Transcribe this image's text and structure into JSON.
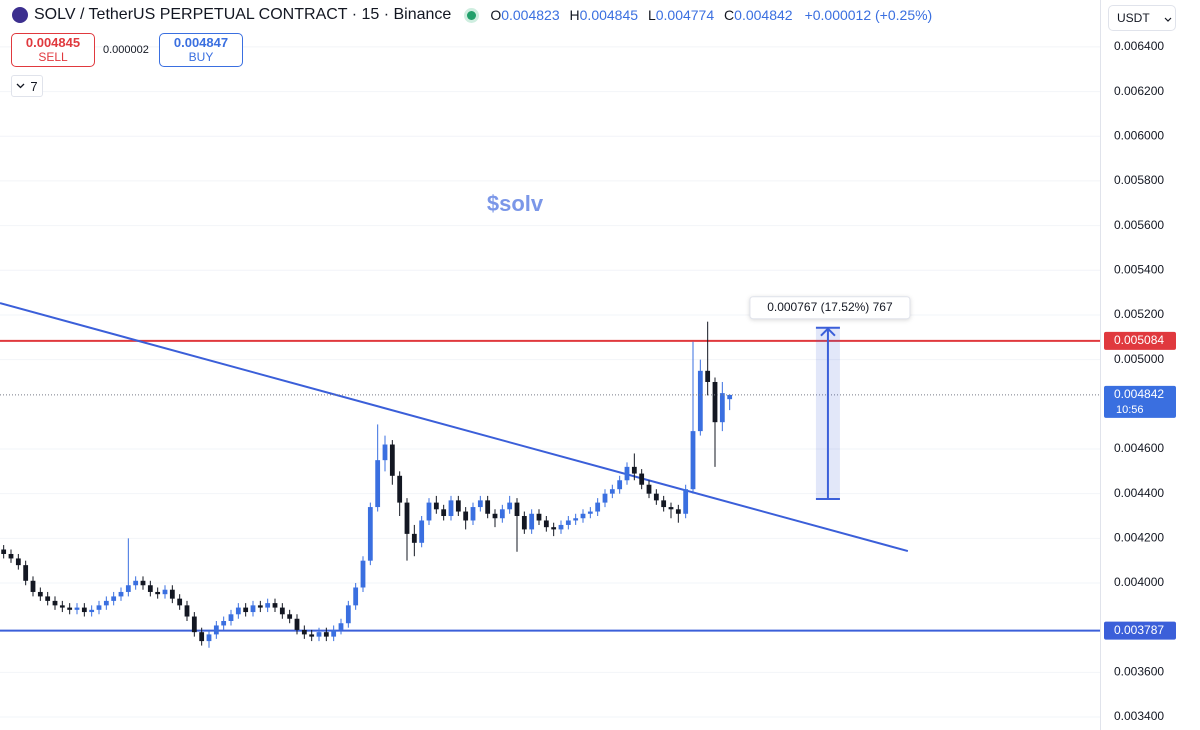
{
  "toolbar": {
    "title": "SOLV / TetherUS PERPETUAL CONTRACT · 15 · Binance",
    "ohlc_labels": [
      "O",
      "H",
      "L",
      "C"
    ],
    "change": "+0.000012 (+0.25%)",
    "sell": {
      "price": "0.004845",
      "label": "SELL"
    },
    "spread": "0.000002",
    "buy": {
      "price": "0.004847",
      "label": "BUY"
    },
    "indicators": "7",
    "currency": "USDT"
  },
  "chart_data": {
    "type": "candlestick",
    "annotation": "$solv",
    "xlim": [
      -0.5,
      149.5
    ],
    "ylim": [
      0.003342,
      0.00661
    ],
    "grid": true,
    "yticks": [
      {
        "value": 0.0064,
        "label": "0.006400"
      },
      {
        "value": 0.0062,
        "label": "0.006200"
      },
      {
        "value": 0.006,
        "label": "0.006000"
      },
      {
        "value": 0.0058,
        "label": "0.005800"
      },
      {
        "value": 0.0056,
        "label": "0.005600"
      },
      {
        "value": 0.0054,
        "label": "0.005400"
      },
      {
        "value": 0.0052,
        "label": "0.005200"
      },
      {
        "value": 0.005,
        "label": "0.005000"
      },
      {
        "value": 0.0046,
        "label": "0.004600"
      },
      {
        "value": 0.0044,
        "label": "0.004400"
      },
      {
        "value": 0.0042,
        "label": "0.004200"
      },
      {
        "value": 0.004,
        "label": "0.004000"
      },
      {
        "value": 0.0036,
        "label": "0.003600"
      },
      {
        "value": 0.0034,
        "label": "0.003400"
      }
    ],
    "series": [
      {
        "up_color": "#3a6fe0",
        "down_color": "#131722",
        "open": [
          0.00415,
          0.00413,
          0.00411,
          0.00408,
          0.00401,
          0.00396,
          0.00394,
          0.00392,
          0.0039,
          0.00389,
          0.00388,
          0.00389,
          0.00387,
          0.00388,
          0.0039,
          0.00392,
          0.00394,
          0.00396,
          0.00399,
          0.00401,
          0.00399,
          0.00396,
          0.00395,
          0.00397,
          0.00393,
          0.0039,
          0.00385,
          0.00378,
          0.00374,
          0.00377,
          0.00381,
          0.00383,
          0.00386,
          0.00389,
          0.00387,
          0.0039,
          0.00389,
          0.00391,
          0.00389,
          0.00386,
          0.00384,
          0.00379,
          0.00377,
          0.00376,
          0.00378,
          0.00376,
          0.00379,
          0.00382,
          0.0039,
          0.00398,
          0.0041,
          0.00434,
          0.00455,
          0.00462,
          0.00448,
          0.00436,
          0.00422,
          0.00418,
          0.00428,
          0.00436,
          0.00433,
          0.0043,
          0.00437,
          0.00432,
          0.00428,
          0.00434,
          0.00437,
          0.00431,
          0.00429,
          0.00433,
          0.00436,
          0.0043,
          0.00424,
          0.00431,
          0.00428,
          0.00425,
          0.00424,
          0.00426,
          0.00428,
          0.00429,
          0.00431,
          0.00432,
          0.00436,
          0.0044,
          0.00442,
          0.00446,
          0.00452,
          0.00449,
          0.00444,
          0.0044,
          0.00437,
          0.00434,
          0.00433,
          0.00431,
          0.00442,
          0.00468,
          0.00495,
          0.0049,
          0.00472,
          0.004823
        ],
        "high": [
          0.00417,
          0.00415,
          0.00413,
          0.0041,
          0.00403,
          0.00398,
          0.00396,
          0.00394,
          0.00392,
          0.00391,
          0.00391,
          0.00391,
          0.0039,
          0.00392,
          0.00394,
          0.00396,
          0.00398,
          0.0042,
          0.00403,
          0.00403,
          0.00401,
          0.00398,
          0.00399,
          0.00399,
          0.00395,
          0.00392,
          0.00387,
          0.0038,
          0.00379,
          0.00383,
          0.00385,
          0.00388,
          0.00391,
          0.00391,
          0.00392,
          0.00392,
          0.00393,
          0.00393,
          0.00391,
          0.00388,
          0.00386,
          0.00381,
          0.00379,
          0.0038,
          0.0038,
          0.00381,
          0.00384,
          0.00392,
          0.004,
          0.00412,
          0.00436,
          0.00471,
          0.00466,
          0.00464,
          0.0045,
          0.00438,
          0.00426,
          0.0043,
          0.00438,
          0.00439,
          0.00435,
          0.00439,
          0.00439,
          0.00434,
          0.00436,
          0.00439,
          0.00439,
          0.00433,
          0.00435,
          0.00439,
          0.00438,
          0.00432,
          0.00433,
          0.00433,
          0.0043,
          0.00427,
          0.00428,
          0.0043,
          0.00431,
          0.00433,
          0.00434,
          0.00438,
          0.00442,
          0.00444,
          0.00448,
          0.00454,
          0.00458,
          0.00451,
          0.00446,
          0.00442,
          0.00439,
          0.00436,
          0.00435,
          0.00444,
          0.00508,
          0.005,
          0.00517,
          0.00492,
          0.0049,
          0.004845
        ],
        "low": [
          0.00411,
          0.00409,
          0.00406,
          0.00399,
          0.00394,
          0.00392,
          0.0039,
          0.00388,
          0.00387,
          0.00386,
          0.00386,
          0.00385,
          0.00385,
          0.00386,
          0.00388,
          0.0039,
          0.00392,
          0.00394,
          0.00397,
          0.00397,
          0.00394,
          0.00393,
          0.00393,
          0.00391,
          0.00388,
          0.00383,
          0.00376,
          0.00372,
          0.00371,
          0.00375,
          0.00379,
          0.00381,
          0.00384,
          0.00385,
          0.00385,
          0.00387,
          0.00387,
          0.00387,
          0.00384,
          0.00382,
          0.00377,
          0.00375,
          0.00374,
          0.00374,
          0.00374,
          0.00374,
          0.00377,
          0.0038,
          0.00388,
          0.00396,
          0.00408,
          0.00432,
          0.0045,
          0.00444,
          0.0043,
          0.0041,
          0.00412,
          0.00416,
          0.00426,
          0.00431,
          0.00428,
          0.00428,
          0.0043,
          0.00424,
          0.00426,
          0.00432,
          0.00429,
          0.00425,
          0.00427,
          0.00431,
          0.00414,
          0.00422,
          0.00422,
          0.00426,
          0.00423,
          0.00421,
          0.00422,
          0.00424,
          0.00426,
          0.00427,
          0.00429,
          0.0043,
          0.00434,
          0.00438,
          0.0044,
          0.00444,
          0.00446,
          0.00442,
          0.00438,
          0.00435,
          0.00432,
          0.00429,
          0.00427,
          0.00429,
          0.0044,
          0.00466,
          0.00484,
          0.00452,
          0.00468,
          0.004774
        ],
        "close": [
          0.00413,
          0.00411,
          0.00408,
          0.00401,
          0.00396,
          0.00394,
          0.00392,
          0.0039,
          0.00389,
          0.00388,
          0.00389,
          0.00387,
          0.00388,
          0.0039,
          0.00392,
          0.00394,
          0.00396,
          0.00399,
          0.00401,
          0.00399,
          0.00396,
          0.00395,
          0.00397,
          0.00393,
          0.0039,
          0.00385,
          0.00378,
          0.00374,
          0.00377,
          0.00381,
          0.00383,
          0.00386,
          0.00389,
          0.00387,
          0.0039,
          0.00389,
          0.00391,
          0.00389,
          0.00386,
          0.00384,
          0.00379,
          0.00377,
          0.00376,
          0.00378,
          0.00376,
          0.00379,
          0.00382,
          0.0039,
          0.00398,
          0.0041,
          0.00434,
          0.00455,
          0.00462,
          0.00448,
          0.00436,
          0.00422,
          0.00418,
          0.00428,
          0.00436,
          0.00433,
          0.0043,
          0.00437,
          0.00432,
          0.00428,
          0.00434,
          0.00437,
          0.00431,
          0.00429,
          0.00433,
          0.00436,
          0.0043,
          0.00424,
          0.00431,
          0.00428,
          0.00425,
          0.00424,
          0.00426,
          0.00428,
          0.00429,
          0.00431,
          0.00432,
          0.00436,
          0.0044,
          0.00442,
          0.00446,
          0.00452,
          0.00449,
          0.00444,
          0.0044,
          0.00437,
          0.00434,
          0.00433,
          0.00431,
          0.00442,
          0.00468,
          0.00495,
          0.0049,
          0.00472,
          0.00485,
          0.004842
        ]
      }
    ],
    "trendline": {
      "x": [
        -0.5,
        123.3
      ],
      "y": [
        0.005253,
        0.004143
      ],
      "color": "#3b5fd9"
    },
    "hlines": [
      {
        "value": 0.005084,
        "color": "#e0393e"
      },
      {
        "value": 0.003787,
        "color": "#3b5fd9"
      }
    ],
    "countdown": "10:56",
    "measure": {
      "x": 112.4,
      "y": [
        0.004376,
        0.005143
      ],
      "label": "0.000767 (17.52%) 767",
      "color": "#3b5fd9"
    }
  }
}
